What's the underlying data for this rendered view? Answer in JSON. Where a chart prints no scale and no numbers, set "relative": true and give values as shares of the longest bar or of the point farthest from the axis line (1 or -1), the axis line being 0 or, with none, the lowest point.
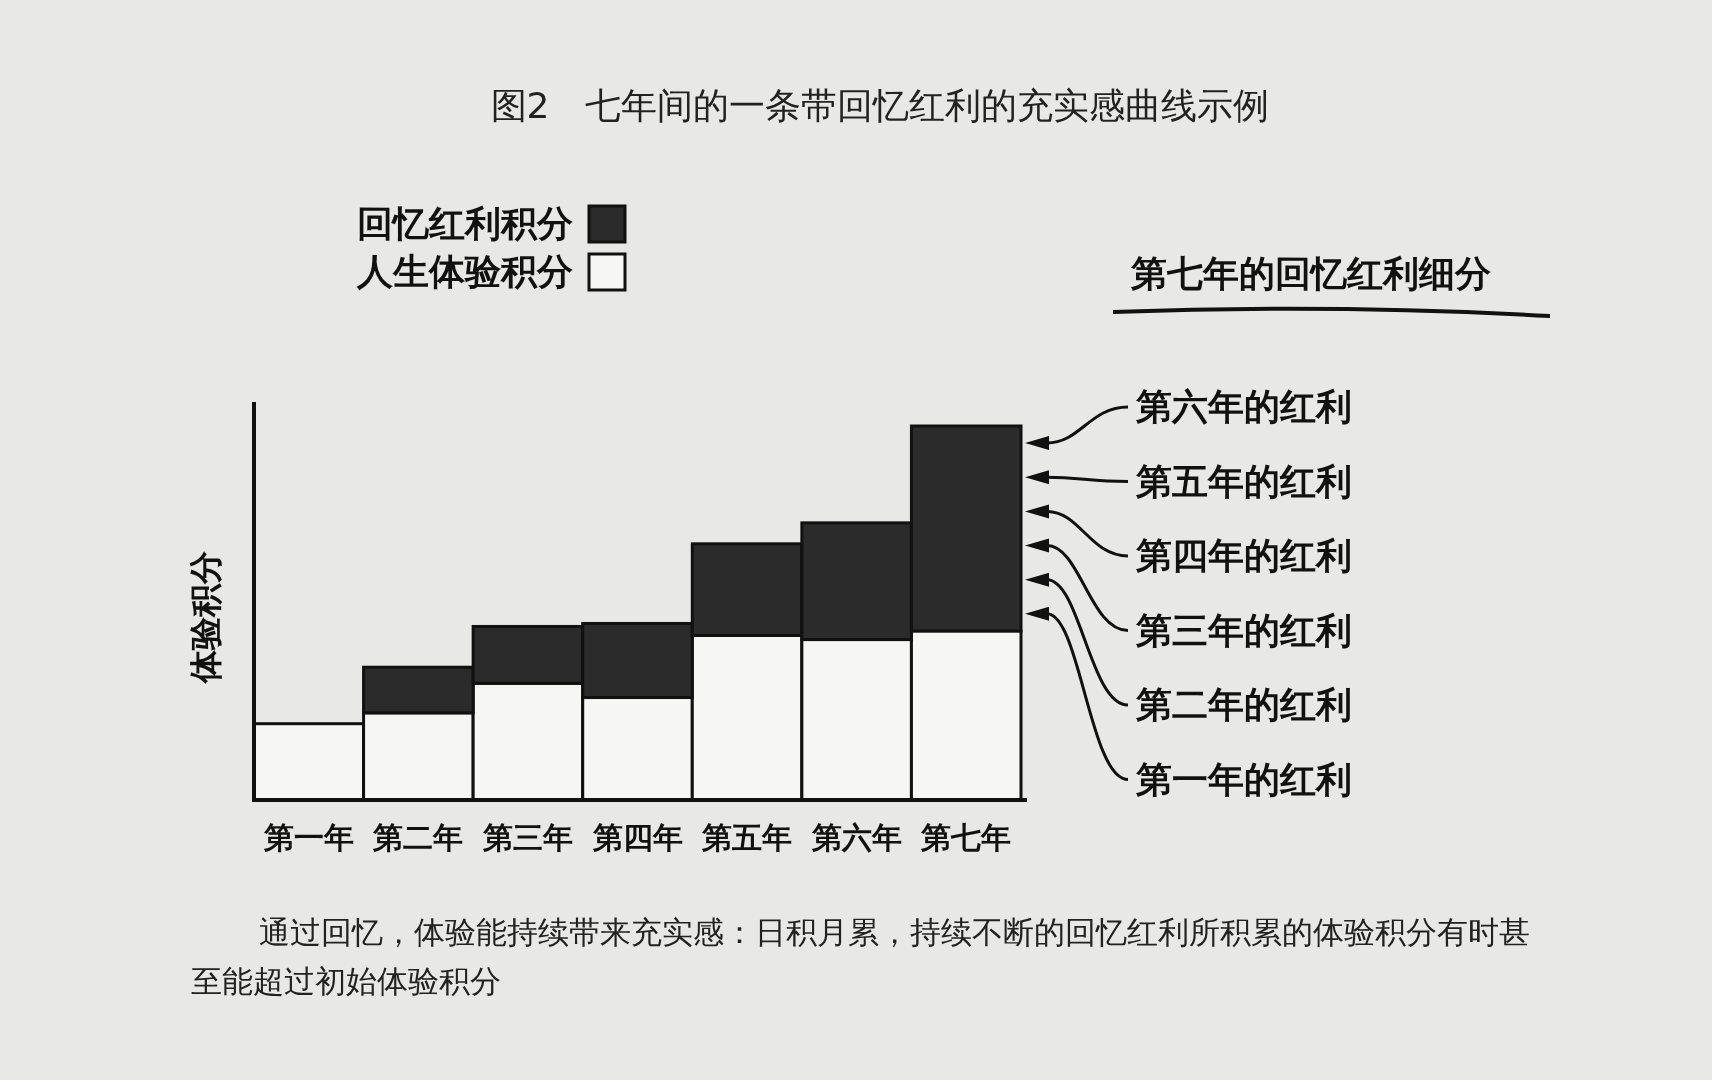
{
  "chart_data": {
    "type": "bar",
    "title": "图2　七年间的一条带回忆红利的充实感曲线示例",
    "ylabel": "体验积分",
    "categories": [
      "第一年",
      "第二年",
      "第三年",
      "第四年",
      "第五年",
      "第六年",
      "第七年"
    ],
    "stacked": true,
    "relative": true,
    "legend": "top left",
    "series": [
      {
        "name": "人生体验积分",
        "color": "#f6f6f4",
        "values": [
          0.204,
          0.233,
          0.312,
          0.274,
          0.44,
          0.429,
          0.452
        ]
      },
      {
        "name": "回忆红利积分",
        "color": "#2b2b2b",
        "values": [
          0,
          0.122,
          0.152,
          0.198,
          0.245,
          0.312,
          0.548
        ]
      }
    ],
    "annotations": [
      "第七年的回忆红利细分",
      "第六年的红利",
      "第五年的红利",
      "第四年的红利",
      "第三年的红利",
      "第二年的红利",
      "第一年的红利",
      "通过回忆，体验能持续带来充实感：日积月累，持续不断的回忆红利所积累的体验积分有时甚至能超过初始体验积分"
    ]
  }
}
